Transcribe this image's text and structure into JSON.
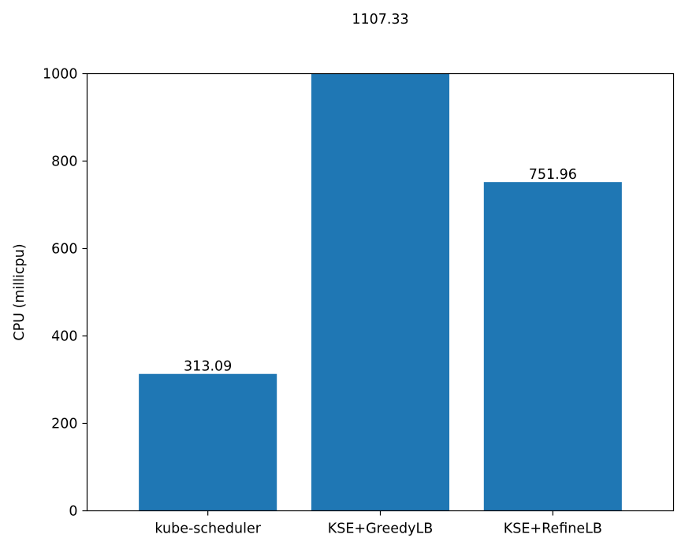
{
  "chart_data": {
    "type": "bar",
    "categories": [
      "kube-scheduler",
      "KSE+GreedyLB",
      "KSE+RefineLB"
    ],
    "values": [
      313.09,
      1107.33,
      751.96
    ],
    "value_labels": [
      "313.09",
      "1107.33",
      "751.96"
    ],
    "ylabel": "CPU (millicpu)",
    "xlabel": "",
    "title": "",
    "ylim": [
      0,
      1000
    ],
    "yticks": [
      0,
      200,
      400,
      600,
      800,
      1000
    ],
    "ytick_labels": [
      "0",
      "200",
      "400",
      "600",
      "800",
      "1000"
    ],
    "bar_color": "#1f77b4",
    "grid": false,
    "legend": "none"
  }
}
